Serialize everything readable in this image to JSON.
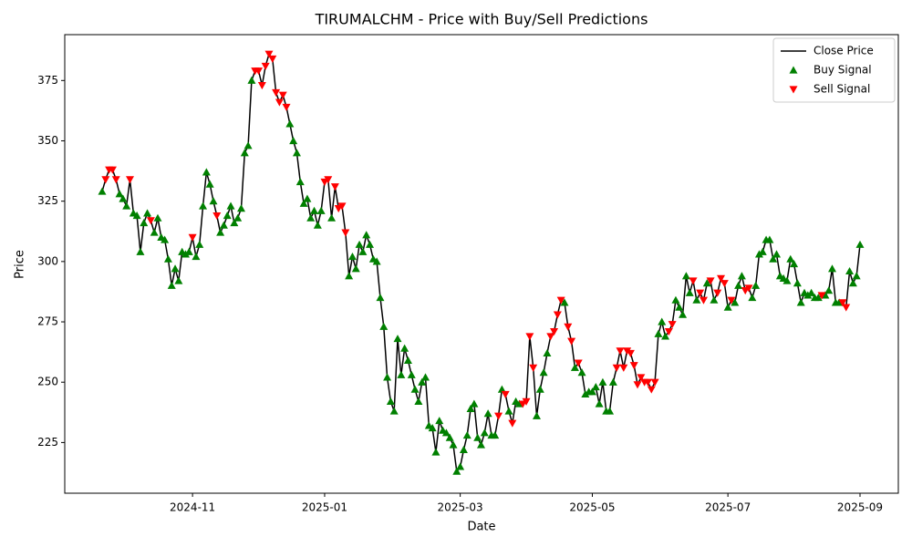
{
  "chart_data": {
    "type": "line",
    "title": "TIRUMALCHM - Price with Buy/Sell Predictions",
    "x_label": "Date",
    "y_label": "Price",
    "x": [
      "2024-09",
      "2024-09",
      "2024-09",
      "2024-09",
      "2024-09",
      "2024-09",
      "2024-09",
      "2024-09",
      "2024-09",
      "2024-10",
      "2024-10",
      "2024-10",
      "2024-10",
      "2024-10",
      "2024-10",
      "2024-10",
      "2024-10",
      "2024-10",
      "2024-10",
      "2024-10",
      "2024-10",
      "2024-10",
      "2024-10",
      "2024-10",
      "2024-10",
      "2024-10",
      "2024-11",
      "2024-11",
      "2024-11",
      "2024-11",
      "2024-11",
      "2024-11",
      "2024-11",
      "2024-11",
      "2024-11",
      "2024-11",
      "2024-11",
      "2024-11",
      "2024-11",
      "2024-11",
      "2024-11",
      "2024-11",
      "2024-11",
      "2024-11",
      "2024-11",
      "2024-12",
      "2024-12",
      "2024-12",
      "2024-12",
      "2024-12",
      "2024-12",
      "2024-12",
      "2024-12",
      "2024-12",
      "2024-12",
      "2024-12",
      "2024-12",
      "2024-12",
      "2024-12",
      "2024-12",
      "2024-12",
      "2024-12",
      "2024-12",
      "2024-12",
      "2025-01",
      "2025-01",
      "2025-01",
      "2025-01",
      "2025-01",
      "2025-01",
      "2025-01",
      "2025-01",
      "2025-01",
      "2025-01",
      "2025-01",
      "2025-01",
      "2025-01",
      "2025-01",
      "2025-01",
      "2025-01",
      "2025-01",
      "2025-01",
      "2025-01",
      "2025-01",
      "2025-01",
      "2025-02",
      "2025-02",
      "2025-02",
      "2025-02",
      "2025-02",
      "2025-02",
      "2025-02",
      "2025-02",
      "2025-02",
      "2025-02",
      "2025-02",
      "2025-02",
      "2025-02",
      "2025-02",
      "2025-02",
      "2025-02",
      "2025-02",
      "2025-02",
      "2025-03",
      "2025-03",
      "2025-03",
      "2025-03",
      "2025-03",
      "2025-03",
      "2025-03",
      "2025-03",
      "2025-03",
      "2025-03",
      "2025-03",
      "2025-03",
      "2025-03",
      "2025-03",
      "2025-03",
      "2025-03",
      "2025-03",
      "2025-03",
      "2025-03",
      "2025-03",
      "2025-04",
      "2025-04",
      "2025-04",
      "2025-04",
      "2025-04",
      "2025-04",
      "2025-04",
      "2025-04",
      "2025-04",
      "2025-04",
      "2025-04",
      "2025-04",
      "2025-04",
      "2025-04",
      "2025-04",
      "2025-04",
      "2025-04",
      "2025-04",
      "2025-05",
      "2025-05",
      "2025-05",
      "2025-05",
      "2025-05",
      "2025-05",
      "2025-05",
      "2025-05",
      "2025-05",
      "2025-05",
      "2025-05",
      "2025-05",
      "2025-05",
      "2025-05",
      "2025-05",
      "2025-05",
      "2025-05",
      "2025-05",
      "2025-05",
      "2025-06",
      "2025-06",
      "2025-06",
      "2025-06",
      "2025-06",
      "2025-06",
      "2025-06",
      "2025-06",
      "2025-06",
      "2025-06",
      "2025-06",
      "2025-06",
      "2025-06",
      "2025-06",
      "2025-06",
      "2025-06",
      "2025-06",
      "2025-06",
      "2025-06",
      "2025-06",
      "2025-07",
      "2025-07",
      "2025-07",
      "2025-07",
      "2025-07",
      "2025-07",
      "2025-07",
      "2025-07",
      "2025-07",
      "2025-07",
      "2025-07",
      "2025-07",
      "2025-07",
      "2025-07",
      "2025-07",
      "2025-07",
      "2025-07",
      "2025-07",
      "2025-07",
      "2025-07",
      "2025-08",
      "2025-08",
      "2025-08",
      "2025-08",
      "2025-08",
      "2025-08",
      "2025-08",
      "2025-08",
      "2025-08",
      "2025-08",
      "2025-08",
      "2025-08",
      "2025-08",
      "2025-08",
      "2025-08",
      "2025-08",
      "2025-08",
      "2025-08",
      "2025-09"
    ],
    "series": [
      {
        "name": "Close Price",
        "type": "line",
        "color": "#000000",
        "values": [
          329,
          334,
          338,
          338,
          334,
          328,
          326,
          323,
          334,
          320,
          319,
          304,
          316,
          320,
          317,
          312,
          318,
          310,
          309,
          301,
          290,
          297,
          292,
          304,
          303,
          304,
          310,
          302,
          307,
          323,
          337,
          332,
          325,
          319,
          312,
          315,
          319,
          323,
          316,
          318,
          322,
          345,
          348,
          375,
          379,
          379,
          373,
          381,
          386,
          384,
          370,
          366,
          369,
          364,
          357,
          350,
          345,
          333,
          324,
          326,
          318,
          321,
          315,
          321,
          333,
          334,
          318,
          331,
          322,
          323,
          312,
          294,
          302,
          297,
          307,
          304,
          311,
          307,
          301,
          300,
          285,
          273,
          252,
          242,
          238,
          268,
          253,
          264,
          259,
          253,
          247,
          242,
          250,
          252,
          232,
          231,
          221,
          234,
          230,
          229,
          227,
          224,
          213,
          215,
          222,
          228,
          239,
          241,
          227,
          224,
          229,
          237,
          228,
          228,
          236,
          247,
          245,
          238,
          233,
          242,
          241,
          241,
          242,
          269,
          256,
          236,
          247,
          254,
          262,
          269,
          271,
          278,
          284,
          283,
          273,
          267,
          256,
          258,
          254,
          245,
          246,
          246,
          248,
          241,
          250,
          238,
          238,
          250,
          256,
          263,
          256,
          263,
          262,
          257,
          249,
          252,
          250,
          250,
          247,
          250,
          270,
          275,
          269,
          271,
          274,
          284,
          281,
          278,
          294,
          287,
          292,
          284,
          287,
          284,
          291,
          292,
          284,
          287,
          293,
          291,
          281,
          284,
          283,
          290,
          294,
          288,
          289,
          285,
          290,
          303,
          304,
          309,
          309,
          301,
          303,
          294,
          293,
          292,
          301,
          299,
          291,
          283,
          287,
          286,
          287,
          285,
          285,
          286,
          286,
          288,
          297,
          283,
          283,
          283,
          281,
          296,
          291,
          294,
          307
        ]
      },
      {
        "name": "Buy Signal",
        "type": "scatter",
        "marker": "^",
        "color": "#008000",
        "values": [
          329,
          null,
          null,
          null,
          null,
          328,
          326,
          323,
          null,
          320,
          319,
          304,
          316,
          320,
          null,
          312,
          318,
          310,
          309,
          301,
          290,
          297,
          292,
          304,
          303,
          304,
          null,
          302,
          307,
          323,
          337,
          332,
          325,
          null,
          312,
          315,
          319,
          323,
          316,
          318,
          322,
          345,
          348,
          375,
          null,
          null,
          null,
          null,
          null,
          null,
          null,
          null,
          null,
          null,
          357,
          350,
          345,
          333,
          324,
          326,
          318,
          321,
          315,
          321,
          null,
          null,
          318,
          null,
          null,
          null,
          null,
          294,
          302,
          297,
          307,
          304,
          311,
          307,
          301,
          300,
          285,
          273,
          252,
          242,
          238,
          268,
          253,
          264,
          259,
          253,
          247,
          242,
          250,
          252,
          232,
          231,
          221,
          234,
          230,
          229,
          227,
          224,
          213,
          215,
          222,
          228,
          239,
          241,
          227,
          224,
          229,
          237,
          228,
          228,
          null,
          247,
          null,
          238,
          null,
          242,
          241,
          null,
          null,
          null,
          null,
          236,
          247,
          254,
          262,
          null,
          null,
          null,
          null,
          283,
          null,
          null,
          256,
          null,
          254,
          245,
          246,
          246,
          248,
          241,
          250,
          238,
          238,
          250,
          null,
          null,
          null,
          null,
          null,
          null,
          null,
          null,
          null,
          null,
          null,
          null,
          270,
          275,
          269,
          null,
          null,
          284,
          281,
          278,
          294,
          287,
          null,
          284,
          null,
          null,
          291,
          null,
          284,
          null,
          null,
          null,
          281,
          null,
          283,
          290,
          294,
          null,
          null,
          285,
          290,
          303,
          304,
          309,
          309,
          301,
          303,
          294,
          293,
          292,
          301,
          299,
          291,
          283,
          287,
          286,
          287,
          285,
          285,
          null,
          286,
          288,
          297,
          283,
          283,
          null,
          null,
          296,
          291,
          294,
          307
        ]
      },
      {
        "name": "Sell Signal",
        "type": "scatter",
        "marker": "v",
        "color": "#ff0000",
        "values": [
          null,
          334,
          338,
          338,
          334,
          null,
          null,
          null,
          334,
          null,
          null,
          null,
          null,
          null,
          317,
          null,
          null,
          null,
          null,
          null,
          null,
          null,
          null,
          null,
          null,
          null,
          310,
          null,
          null,
          null,
          null,
          null,
          null,
          319,
          null,
          null,
          null,
          null,
          null,
          null,
          null,
          null,
          null,
          null,
          379,
          379,
          373,
          381,
          386,
          384,
          370,
          366,
          369,
          364,
          null,
          null,
          null,
          null,
          null,
          null,
          null,
          null,
          null,
          null,
          333,
          334,
          null,
          331,
          322,
          323,
          312,
          null,
          null,
          null,
          null,
          null,
          null,
          null,
          null,
          null,
          null,
          null,
          null,
          null,
          null,
          null,
          null,
          null,
          null,
          null,
          null,
          null,
          null,
          null,
          null,
          null,
          null,
          null,
          null,
          null,
          null,
          null,
          null,
          null,
          null,
          null,
          null,
          null,
          null,
          null,
          null,
          null,
          null,
          null,
          236,
          null,
          245,
          null,
          233,
          null,
          null,
          241,
          242,
          269,
          256,
          null,
          null,
          null,
          null,
          269,
          271,
          278,
          284,
          null,
          273,
          267,
          null,
          258,
          null,
          null,
          null,
          null,
          null,
          null,
          null,
          null,
          null,
          null,
          256,
          263,
          256,
          263,
          262,
          257,
          249,
          252,
          250,
          250,
          247,
          250,
          null,
          null,
          null,
          271,
          274,
          null,
          null,
          null,
          null,
          null,
          292,
          null,
          287,
          284,
          null,
          292,
          null,
          287,
          293,
          291,
          null,
          284,
          null,
          null,
          null,
          288,
          289,
          null,
          null,
          null,
          null,
          null,
          null,
          null,
          null,
          null,
          null,
          null,
          null,
          null,
          null,
          null,
          null,
          null,
          null,
          null,
          null,
          286,
          null,
          null,
          null,
          null,
          null,
          283,
          281,
          null,
          null,
          null,
          null
        ]
      }
    ],
    "xticks": [
      "2024-11",
      "2025-01",
      "2025-03",
      "2025-05",
      "2025-07",
      "2025-09"
    ],
    "ylim": [
      204,
      394
    ],
    "yticks": [
      225,
      250,
      275,
      300,
      325,
      350,
      375
    ],
    "grid": false,
    "legend": "upper right"
  }
}
